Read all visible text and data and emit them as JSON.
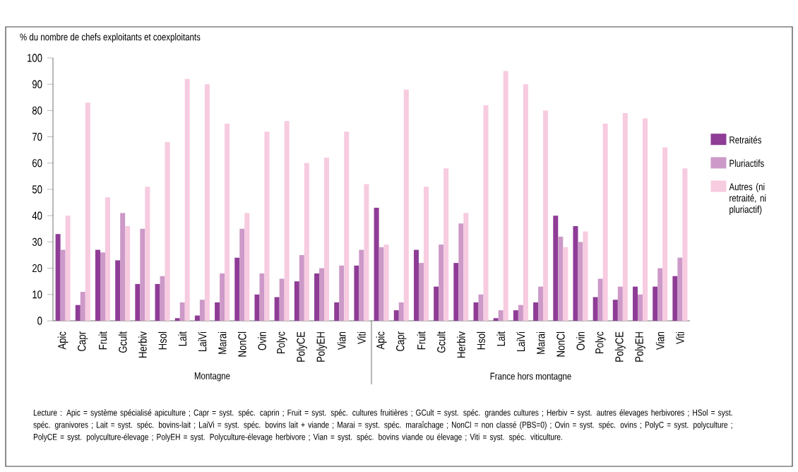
{
  "chart_data": {
    "type": "bar",
    "ylabel": "% du nombre de chefs exploitants et coexploitants",
    "categories": [
      "Apic",
      "Capr",
      "Fruit",
      "Gcult",
      "Herbiv",
      "Hsol",
      "Lait",
      "LaiVi",
      "Marai",
      "NonCl",
      "Ovin",
      "Polyc",
      "PolyCE",
      "PolyEH",
      "Vian",
      "Viti",
      "Apic",
      "Capr",
      "Fruit",
      "Gcult",
      "Herbiv",
      "Hsol",
      "Lait",
      "LaiVi",
      "Marai",
      "NonCl",
      "Ovin",
      "Polyc",
      "PolyCE",
      "PolyEH",
      "Vian",
      "Viti"
    ],
    "series": [
      {
        "name": "Retraités",
        "color": "#8e3c96",
        "values": [
          33,
          6,
          27,
          23,
          14,
          14,
          1,
          2,
          7,
          24,
          10,
          9,
          15,
          18,
          7,
          21,
          43,
          4,
          27,
          13,
          22,
          7,
          1,
          4,
          7,
          40,
          36,
          9,
          8,
          13,
          13,
          17
        ]
      },
      {
        "name": "Pluriactifs",
        "color": "#cc99c8",
        "values": [
          27,
          11,
          26,
          41,
          35,
          17,
          7,
          8,
          18,
          35,
          18,
          16,
          25,
          20,
          21,
          27,
          28,
          7,
          22,
          29,
          37,
          10,
          4,
          6,
          13,
          32,
          30,
          16,
          13,
          10,
          20,
          24
        ]
      },
      {
        "name": "Autres (ni retraité, ni pluriactif)",
        "color": "#f7cbe0",
        "values": [
          40,
          83,
          47,
          36,
          51,
          68,
          92,
          90,
          75,
          41,
          72,
          76,
          60,
          62,
          72,
          52,
          29,
          88,
          51,
          58,
          41,
          82,
          95,
          90,
          80,
          28,
          34,
          75,
          79,
          77,
          66,
          58
        ]
      }
    ],
    "ylim": [
      0,
      100
    ],
    "yticks": [
      0,
      10,
      20,
      30,
      40,
      50,
      60,
      70,
      80,
      90,
      100
    ],
    "legend": "right",
    "grid": false,
    "annotations": [
      "Montagne",
      "France hors montagne",
      "Lecture : Apic = système spécialisé apiculture ; Capr = syst. spéc. caprin ; Fruit = syst. spéc. cultures fruitières ; GCult = syst. spéc. grandes cultures ; Herbiv = syst. autres élevages herbivores ; HSol = syst. spéc. granivores ; Lait = syst. spéc. bovins-lait ; LaiVi = syst. spéc. bovins lait + viande ; Marai = syst. spéc. maraîchage ; NonCl = non classé (PBS=0) ; Ovin = syst. spéc. ovins ; PolyC = syst. polyculture ; PolyCE = syst. polyculture-élevage ; PolyEH = syst. Polyculture-élevage herbivore ; Vian = syst. spéc. bovins viande ou élevage ; Viti = syst. spéc. viticulture."
    ]
  }
}
